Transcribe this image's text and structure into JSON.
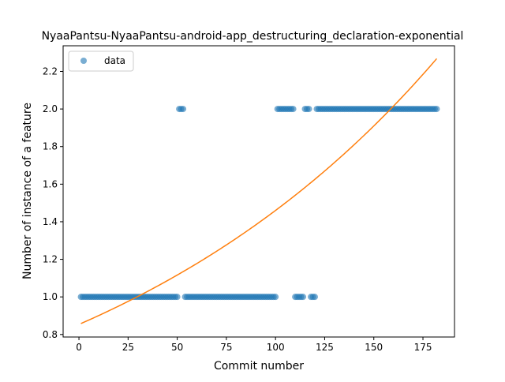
{
  "chart_data": {
    "type": "scatter",
    "title": "NyaaPantsu-NyaaPantsu-android-app_destructuring_declaration-exponential",
    "xlabel": "Commit number",
    "ylabel": "Number of instance of a feature",
    "xlim": [
      -8.05,
      191.05
    ],
    "ylim": [
      0.7865,
      2.3365
    ],
    "xticks": [
      0,
      25,
      50,
      75,
      100,
      125,
      150,
      175
    ],
    "yticks": [
      0.8,
      1.0,
      1.2,
      1.4,
      1.6,
      1.8,
      2.0,
      2.2
    ],
    "ytick_labels": [
      "0.8",
      "1.0",
      "1.2",
      "1.4",
      "1.6",
      "1.8",
      "2.0",
      "2.2"
    ],
    "legend": {
      "position": "upper-left",
      "entries": [
        "data"
      ]
    },
    "grid": false,
    "colors": {
      "data": "#1f77b4",
      "fit": "#ff7f0e"
    },
    "series": [
      {
        "name": "data",
        "kind": "points",
        "segments": [
          {
            "x_from": 1,
            "x_to": 50,
            "y": 1
          },
          {
            "x_from": 51,
            "x_to": 53,
            "y": 2
          },
          {
            "x_from": 54,
            "x_to": 100,
            "y": 1
          },
          {
            "x_from": 101,
            "x_to": 109,
            "y": 2
          },
          {
            "x_from": 110,
            "x_to": 114,
            "y": 1
          },
          {
            "x_from": 115,
            "x_to": 117,
            "y": 2
          },
          {
            "x_from": 118,
            "x_to": 120,
            "y": 1
          },
          {
            "x_from": 121,
            "x_to": 182,
            "y": 2
          }
        ]
      },
      {
        "kind": "fit-curve",
        "model": "exponential",
        "x_range": [
          1,
          182
        ],
        "y_start": 0.858,
        "y_end": 2.268
      }
    ]
  }
}
